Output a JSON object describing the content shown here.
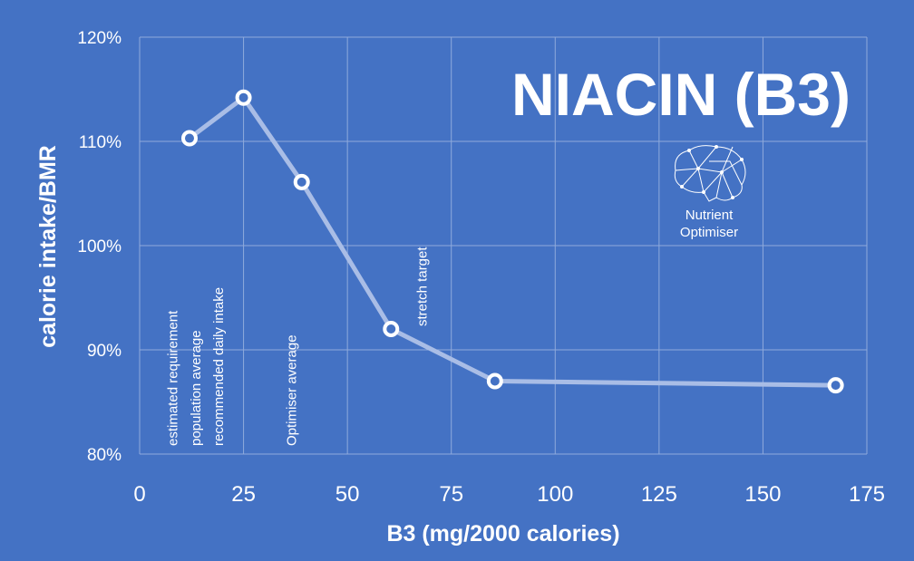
{
  "chart_data": {
    "type": "line",
    "title": "NIACIN (B3)",
    "xlabel": "B3 (mg/2000 calories)",
    "ylabel": "calorie intake/BMR",
    "xlim": [
      0,
      175
    ],
    "ylim": [
      80,
      120
    ],
    "x_ticks": [
      "0",
      "25",
      "50",
      "75",
      "100",
      "125",
      "150",
      "175"
    ],
    "y_ticks": [
      "80%",
      "90%",
      "100%",
      "110%",
      "120%"
    ],
    "grid": true,
    "series": [
      {
        "x": [
          12,
          25,
          39,
          60.5,
          85.5,
          167.5
        ],
        "y": [
          110.3,
          114.2,
          106.1,
          92.0,
          87.0,
          86.6
        ],
        "color": "#a9bde6",
        "marker_fill": "#4472c4",
        "marker_stroke": "#ffffff"
      }
    ],
    "annotations": [
      {
        "text": "estimated  requirement",
        "x": 8
      },
      {
        "text": "population average",
        "x": 13.5
      },
      {
        "text": "recommended daily intake",
        "x": 19
      },
      {
        "text": "Optimiser average",
        "x": 36.5
      },
      {
        "text": "stretch target",
        "x": 68
      }
    ]
  },
  "logo": {
    "icon": "brain-network-icon",
    "line1": "Nutrient",
    "line2": "Optimiser"
  },
  "colors": {
    "background": "#4472c4",
    "grid": "#8faadc",
    "text": "#ffffff"
  }
}
